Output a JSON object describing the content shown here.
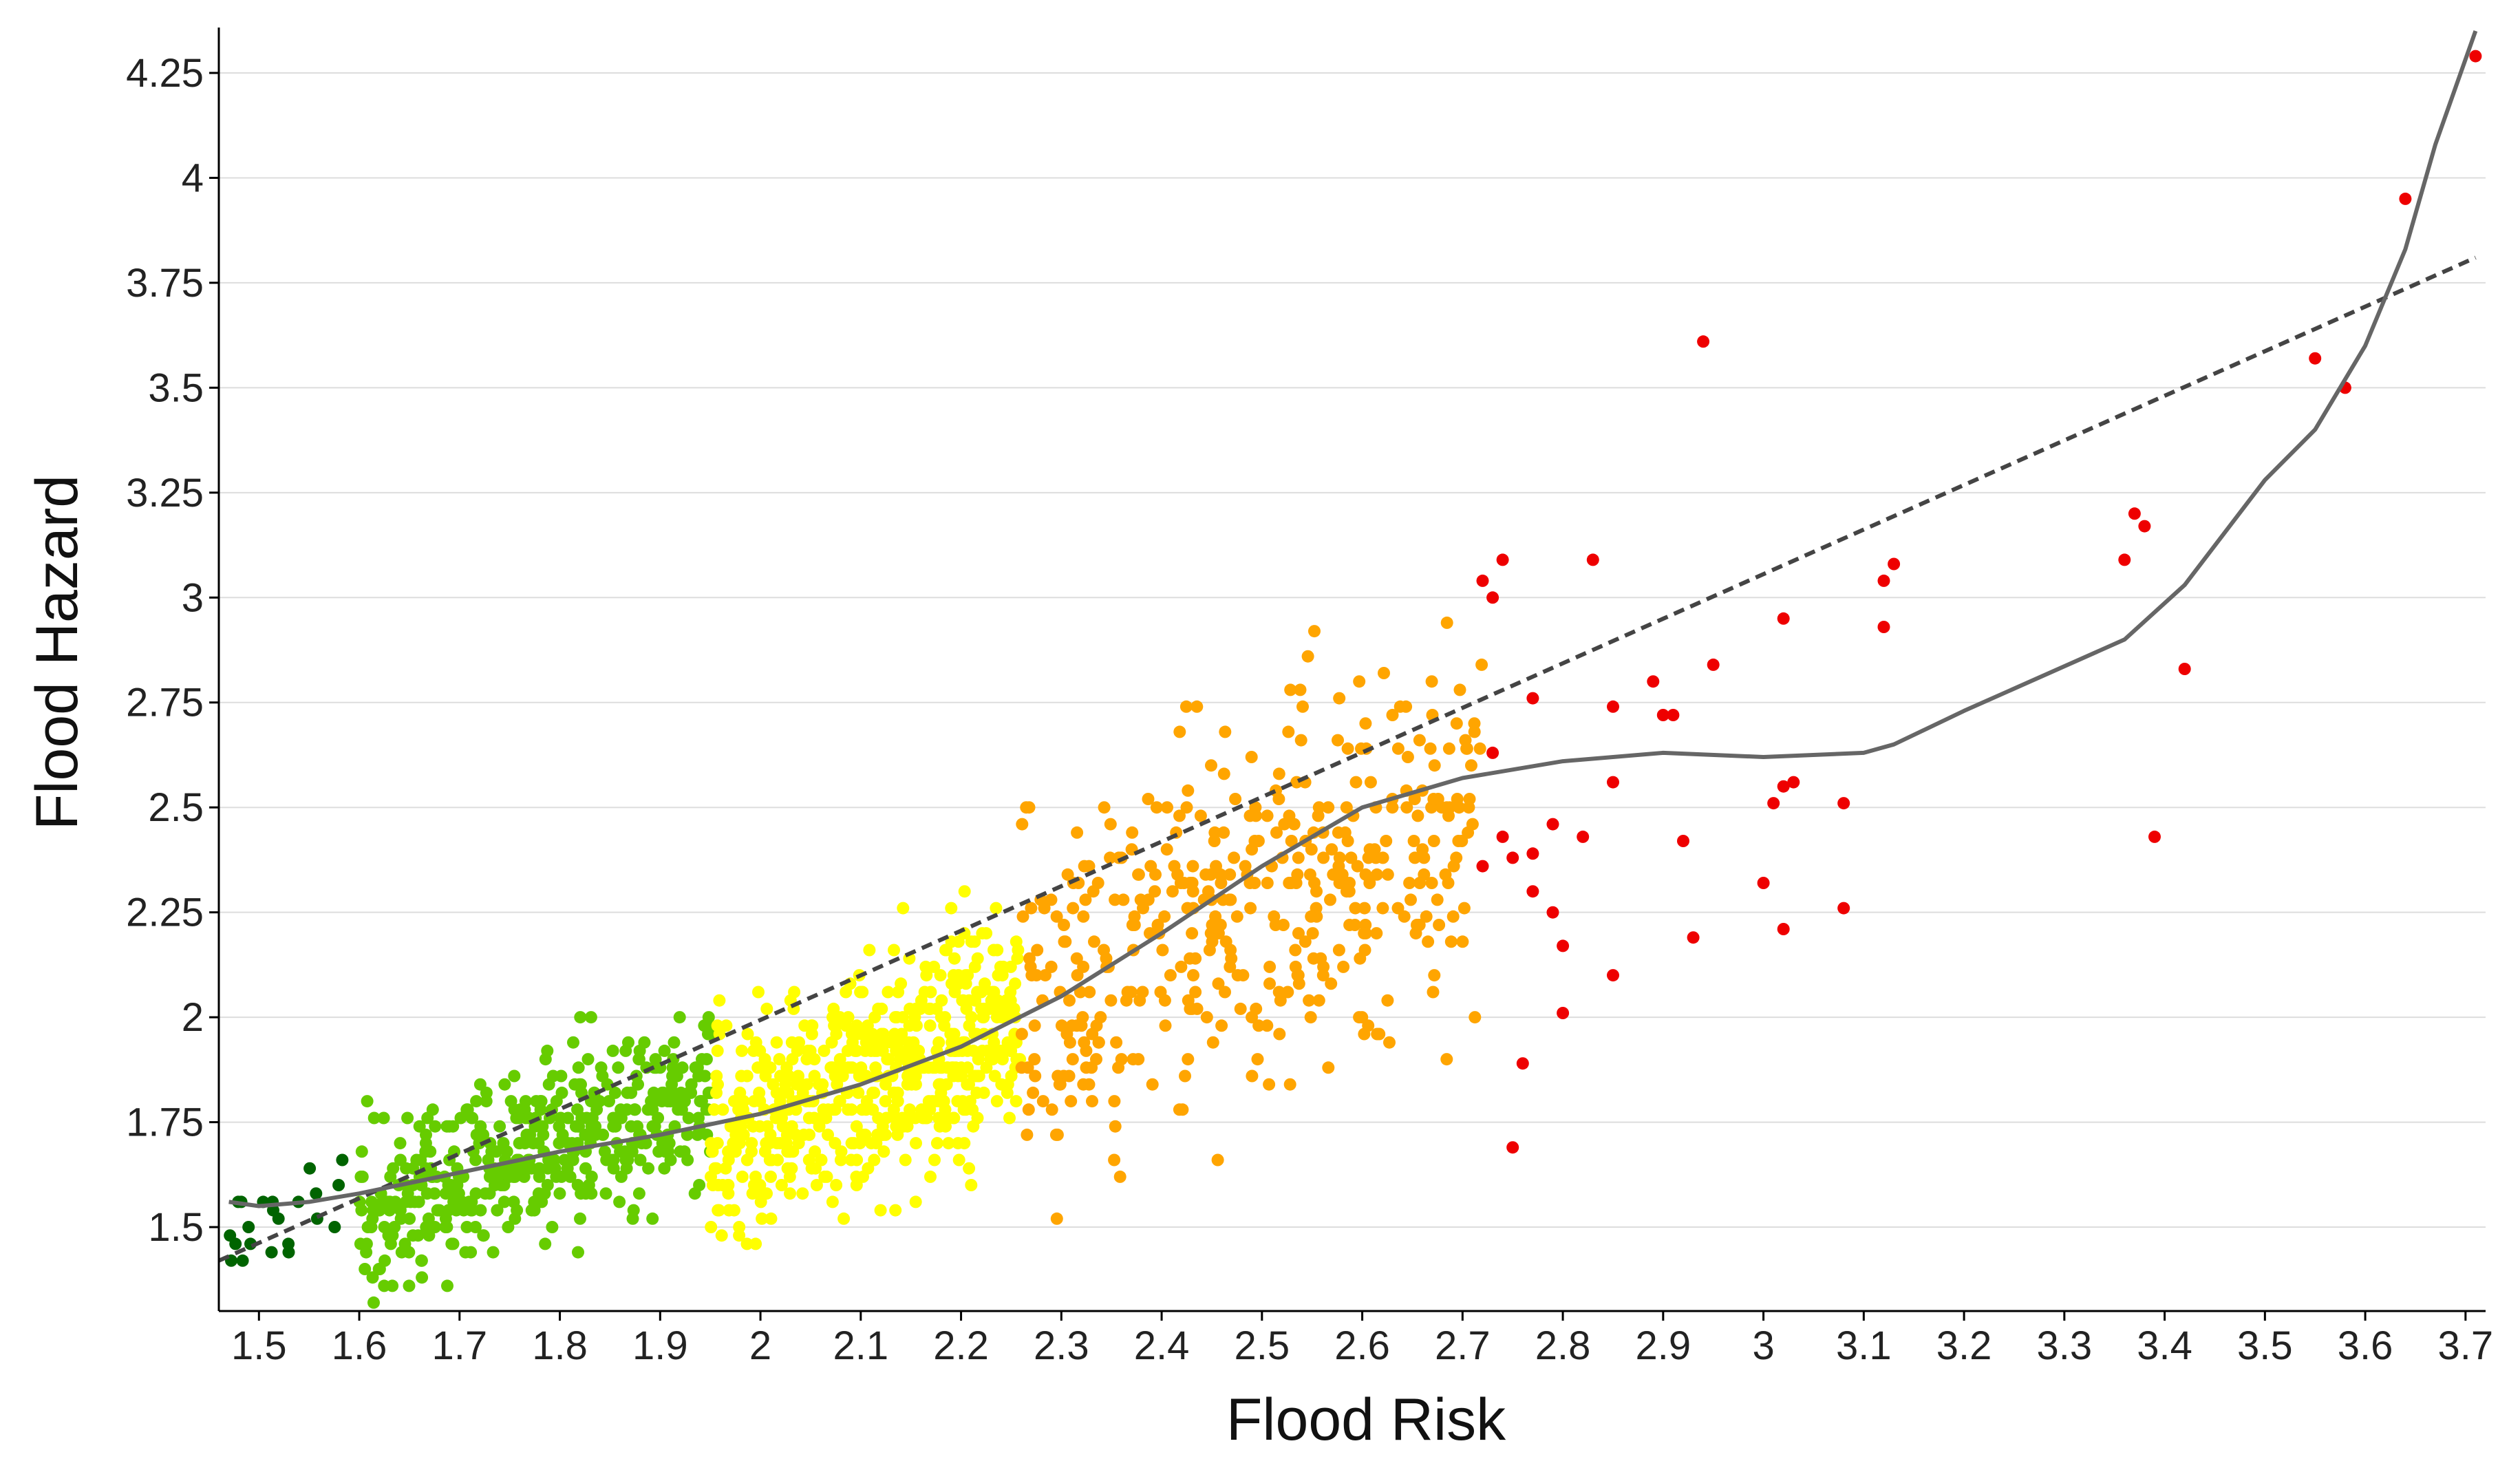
{
  "chart_data": {
    "type": "scatter",
    "title": "",
    "xlabel": "Flood Risk",
    "ylabel": "Flood Hazard",
    "xlim": [
      1.46,
      3.72
    ],
    "ylim": [
      1.3,
      4.35
    ],
    "xticks": [
      1.5,
      1.6,
      1.7,
      1.8,
      1.9,
      2,
      2.1,
      2.2,
      2.3,
      2.4,
      2.5,
      2.6,
      2.7,
      2.8,
      2.9,
      3,
      3.1,
      3.2,
      3.3,
      3.4,
      3.5,
      3.6,
      3.7
    ],
    "xtick_labels": [
      "1.5",
      "1.6",
      "1.7",
      "1.8",
      "1.9",
      "2",
      "2.1",
      "2.2",
      "2.3",
      "2.4",
      "2.5",
      "2.6",
      "2.7",
      "2.8",
      "2.9",
      "3",
      "3.1",
      "3.2",
      "3.3",
      "3.4",
      "3.5",
      "3.6",
      "3.7"
    ],
    "yticks": [
      1.5,
      1.75,
      2,
      2.25,
      2.5,
      2.75,
      3,
      3.25,
      3.5,
      3.75,
      4,
      4.25
    ],
    "ytick_labels": [
      "1.5",
      "1.75",
      "2",
      "2.25",
      "2.5",
      "2.75",
      "3",
      "3.25",
      "3.5",
      "3.75",
      "4",
      "4.25"
    ],
    "grid": "horizontal",
    "colors": {
      "very_low": "#006400",
      "low": "#66cc00",
      "medium": "#ffff00",
      "high": "#ffa500",
      "very_high": "#ee0000",
      "trend": "#444444",
      "smooth": "#666666",
      "grid": "#dddddd",
      "axis": "#000000"
    },
    "classes": [
      {
        "name": "very_low",
        "x_from": 1.46,
        "x_to": 1.6,
        "y_center": 1.55,
        "y_spread": 0.08,
        "n": 22
      },
      {
        "name": "low",
        "x_from": 1.6,
        "x_to": 1.95,
        "y_center": 1.68,
        "y_spread": 0.17,
        "n": 440
      },
      {
        "name": "medium",
        "x_from": 1.95,
        "x_to": 2.26,
        "y_center": 1.85,
        "y_spread": 0.22,
        "n": 560
      },
      {
        "name": "high",
        "x_from": 2.26,
        "x_to": 2.72,
        "y_center": 2.25,
        "y_spread": 0.36,
        "n": 430
      }
    ],
    "very_high_points": [
      [
        2.72,
        3.04
      ],
      [
        2.73,
        3.0
      ],
      [
        2.74,
        3.09
      ],
      [
        2.73,
        2.63
      ],
      [
        2.77,
        2.76
      ],
      [
        2.72,
        2.36
      ],
      [
        2.74,
        2.43
      ],
      [
        2.75,
        2.38
      ],
      [
        2.77,
        2.39
      ],
      [
        2.79,
        2.46
      ],
      [
        2.82,
        2.43
      ],
      [
        2.77,
        2.3
      ],
      [
        2.79,
        2.25
      ],
      [
        2.8,
        2.17
      ],
      [
        2.8,
        2.01
      ],
      [
        2.76,
        1.89
      ],
      [
        2.75,
        1.69
      ],
      [
        2.83,
        3.09
      ],
      [
        2.85,
        2.74
      ],
      [
        2.85,
        2.56
      ],
      [
        2.85,
        2.1
      ],
      [
        2.89,
        2.8
      ],
      [
        2.9,
        2.72
      ],
      [
        2.91,
        2.72
      ],
      [
        2.92,
        2.42
      ],
      [
        2.93,
        2.19
      ],
      [
        2.94,
        3.61
      ],
      [
        2.95,
        2.84
      ],
      [
        3.0,
        2.32
      ],
      [
        3.01,
        2.51
      ],
      [
        3.02,
        2.55
      ],
      [
        3.03,
        2.56
      ],
      [
        3.02,
        2.95
      ],
      [
        3.02,
        2.21
      ],
      [
        3.08,
        2.51
      ],
      [
        3.08,
        2.26
      ],
      [
        3.12,
        3.04
      ],
      [
        3.12,
        2.93
      ],
      [
        3.13,
        3.08
      ],
      [
        3.36,
        3.09
      ],
      [
        3.37,
        3.2
      ],
      [
        3.38,
        3.17
      ],
      [
        3.39,
        2.43
      ],
      [
        3.42,
        2.83
      ],
      [
        3.55,
        3.57
      ],
      [
        3.58,
        3.5
      ],
      [
        3.64,
        3.95
      ],
      [
        3.71,
        4.29
      ]
    ],
    "linear_trend": {
      "x": [
        1.46,
        3.71
      ],
      "y": [
        1.42,
        3.81
      ]
    },
    "smooth_curve": {
      "x": [
        1.47,
        1.5,
        1.55,
        1.6,
        1.7,
        1.8,
        1.9,
        2.0,
        2.1,
        2.2,
        2.3,
        2.4,
        2.5,
        2.6,
        2.7,
        2.8,
        2.9,
        3.0,
        3.1,
        3.13,
        3.2,
        3.36,
        3.42,
        3.5,
        3.55,
        3.6,
        3.64,
        3.67,
        3.71
      ],
      "y": [
        1.56,
        1.55,
        1.56,
        1.58,
        1.63,
        1.68,
        1.72,
        1.77,
        1.84,
        1.93,
        2.05,
        2.2,
        2.36,
        2.5,
        2.57,
        2.61,
        2.63,
        2.62,
        2.63,
        2.65,
        2.73,
        2.9,
        3.03,
        3.28,
        3.4,
        3.6,
        3.83,
        4.08,
        4.35
      ]
    }
  }
}
